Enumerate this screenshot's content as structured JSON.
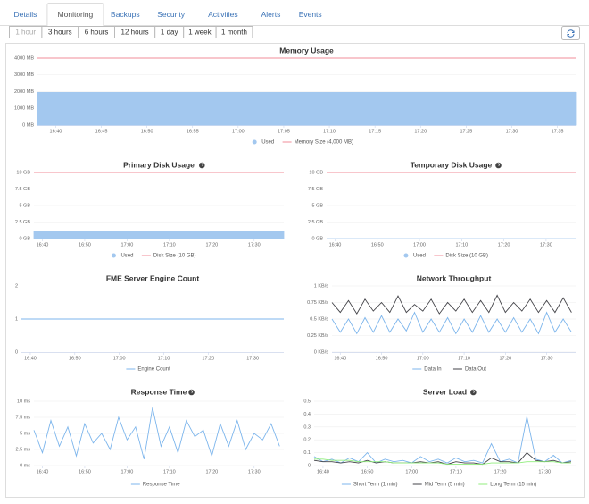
{
  "tabs": [
    "Details",
    "Monitoring",
    "Backups",
    "Security",
    "Activities",
    "Alerts",
    "Events"
  ],
  "active_tab": 1,
  "ranges": [
    "1 hour",
    "3 hours",
    "6 hours",
    "12 hours",
    "1 day",
    "1 week",
    "1 month"
  ],
  "active_range": 0,
  "chart_data": [
    {
      "type": "area",
      "title": "Memory Usage",
      "help": false,
      "grid": true,
      "xlim": [
        998,
        1057
      ],
      "x": [
        998,
        1057
      ],
      "xticks": [
        {
          "value": 1000,
          "label": "16:40"
        },
        {
          "value": 1005,
          "label": "16:45"
        },
        {
          "value": 1010,
          "label": "16:50"
        },
        {
          "value": 1015,
          "label": "16:55"
        },
        {
          "value": 1020,
          "label": "17:00"
        },
        {
          "value": 1025,
          "label": "17:05"
        },
        {
          "value": 1030,
          "label": "17:10"
        },
        {
          "value": 1035,
          "label": "17:15"
        },
        {
          "value": 1040,
          "label": "17:20"
        },
        {
          "value": 1045,
          "label": "17:25"
        },
        {
          "value": 1050,
          "label": "17:30"
        },
        {
          "value": 1055,
          "label": "17:35"
        }
      ],
      "ylim": [
        0,
        4000
      ],
      "yticks": [
        {
          "value": 0,
          "label": "0 MB"
        },
        {
          "value": 1000,
          "label": "1000 MB"
        },
        {
          "value": 2000,
          "label": "2000 MB"
        },
        {
          "value": 3000,
          "label": "3000 MB"
        },
        {
          "value": 4000,
          "label": "4000 MB"
        }
      ],
      "series": [
        {
          "name": "Used",
          "type": "area",
          "color": "#a3c8ef",
          "values": [
            1950,
            1950
          ]
        },
        {
          "name": "Memory Size (4,000 MB)",
          "type": "line",
          "color": "#f08d9a",
          "values": [
            4000,
            4000
          ]
        }
      ]
    },
    {
      "type": "area",
      "title": "Primary Disk Usage",
      "help": true,
      "grid": true,
      "xlim": [
        998,
        1057
      ],
      "x": [
        998,
        1057
      ],
      "xticks": [
        {
          "value": 1000,
          "label": "16:40"
        },
        {
          "value": 1010,
          "label": "16:50"
        },
        {
          "value": 1020,
          "label": "17:00"
        },
        {
          "value": 1030,
          "label": "17:10"
        },
        {
          "value": 1040,
          "label": "17:20"
        },
        {
          "value": 1050,
          "label": "17:30"
        }
      ],
      "ylim": [
        0,
        10
      ],
      "yticks": [
        {
          "value": 0,
          "label": "0 GB"
        },
        {
          "value": 2.5,
          "label": "2.5 GB"
        },
        {
          "value": 5,
          "label": "5 GB"
        },
        {
          "value": 7.5,
          "label": "7.5 GB"
        },
        {
          "value": 10,
          "label": "10 GB"
        }
      ],
      "series": [
        {
          "name": "Used",
          "type": "area",
          "color": "#a3c8ef",
          "values": [
            1.1,
            1.1
          ]
        },
        {
          "name": "Disk Size (10 GB)",
          "type": "line",
          "color": "#f08d9a",
          "values": [
            10,
            10
          ]
        }
      ]
    },
    {
      "type": "area",
      "title": "Temporary Disk Usage",
      "help": true,
      "grid": true,
      "xlim": [
        998,
        1057
      ],
      "x": [
        998,
        1057
      ],
      "xticks": [
        {
          "value": 1000,
          "label": "16:40"
        },
        {
          "value": 1010,
          "label": "16:50"
        },
        {
          "value": 1020,
          "label": "17:00"
        },
        {
          "value": 1030,
          "label": "17:10"
        },
        {
          "value": 1040,
          "label": "17:20"
        },
        {
          "value": 1050,
          "label": "17:30"
        }
      ],
      "ylim": [
        0,
        10
      ],
      "yticks": [
        {
          "value": 0,
          "label": "0 GB"
        },
        {
          "value": 2.5,
          "label": "2.5 GB"
        },
        {
          "value": 5,
          "label": "5 GB"
        },
        {
          "value": 7.5,
          "label": "7.5 GB"
        },
        {
          "value": 10,
          "label": "10 GB"
        }
      ],
      "series": [
        {
          "name": "Used",
          "type": "area",
          "color": "#a3c8ef",
          "values": [
            0,
            0
          ]
        },
        {
          "name": "Disk Size (10 GB)",
          "type": "line",
          "color": "#f08d9a",
          "values": [
            10,
            10
          ]
        }
      ]
    },
    {
      "type": "line",
      "title": "FME Server Engine Count",
      "help": false,
      "grid": false,
      "xlim": [
        998,
        1057
      ],
      "x": [
        998,
        1057
      ],
      "xticks": [
        {
          "value": 1000,
          "label": "16:40"
        },
        {
          "value": 1010,
          "label": "16:50"
        },
        {
          "value": 1020,
          "label": "17:00"
        },
        {
          "value": 1030,
          "label": "17:10"
        },
        {
          "value": 1040,
          "label": "17:20"
        },
        {
          "value": 1050,
          "label": "17:30"
        }
      ],
      "ylim": [
        0,
        2
      ],
      "yticks": [
        0,
        1,
        2
      ],
      "series": [
        {
          "name": "Engine Count",
          "type": "line",
          "color": "#7cb5ec",
          "values": [
            1,
            1
          ]
        }
      ]
    },
    {
      "type": "line",
      "title": "Network Throughput",
      "help": false,
      "grid": true,
      "xlim": [
        998,
        1057
      ],
      "x": [
        998,
        1000,
        1002,
        1004,
        1006,
        1008,
        1010,
        1012,
        1014,
        1016,
        1018,
        1020,
        1022,
        1024,
        1026,
        1028,
        1030,
        1032,
        1034,
        1036,
        1038,
        1040,
        1042,
        1044,
        1046,
        1048,
        1050,
        1052,
        1054,
        1056
      ],
      "xticks": [
        {
          "value": 1000,
          "label": "16:40"
        },
        {
          "value": 1010,
          "label": "16:50"
        },
        {
          "value": 1020,
          "label": "17:00"
        },
        {
          "value": 1030,
          "label": "17:10"
        },
        {
          "value": 1040,
          "label": "17:20"
        },
        {
          "value": 1050,
          "label": "17:30"
        }
      ],
      "ylim": [
        0,
        1
      ],
      "yticks": [
        {
          "value": 0,
          "label": "0 KB/s"
        },
        {
          "value": 0.25,
          "label": "0.25 KB/s"
        },
        {
          "value": 0.5,
          "label": "0.5 KB/s"
        },
        {
          "value": 0.75,
          "label": "0.75 KB/s"
        },
        {
          "value": 1,
          "label": "1 KB/s"
        }
      ],
      "series": [
        {
          "name": "Data In",
          "type": "line",
          "color": "#7cb5ec",
          "values": [
            0.5,
            0.3,
            0.5,
            0.28,
            0.52,
            0.3,
            0.55,
            0.3,
            0.5,
            0.32,
            0.6,
            0.3,
            0.5,
            0.3,
            0.52,
            0.28,
            0.5,
            0.3,
            0.55,
            0.3,
            0.5,
            0.3,
            0.52,
            0.3,
            0.5,
            0.28,
            0.6,
            0.3,
            0.5,
            0.3
          ]
        },
        {
          "name": "Data Out",
          "type": "line",
          "color": "#434348",
          "values": [
            0.75,
            0.6,
            0.78,
            0.58,
            0.8,
            0.62,
            0.75,
            0.6,
            0.85,
            0.6,
            0.72,
            0.62,
            0.8,
            0.58,
            0.75,
            0.62,
            0.8,
            0.6,
            0.78,
            0.6,
            0.86,
            0.6,
            0.75,
            0.62,
            0.8,
            0.6,
            0.78,
            0.6,
            0.82,
            0.6
          ]
        }
      ]
    },
    {
      "type": "line",
      "title": "Response Time",
      "help": true,
      "grid": true,
      "xlim": [
        998,
        1057
      ],
      "x": [
        998,
        1000,
        1002,
        1004,
        1006,
        1008,
        1010,
        1012,
        1014,
        1016,
        1018,
        1020,
        1022,
        1024,
        1026,
        1028,
        1030,
        1032,
        1034,
        1036,
        1038,
        1040,
        1042,
        1044,
        1046,
        1048,
        1050,
        1052,
        1054,
        1056
      ],
      "xticks": [
        {
          "value": 1000,
          "label": "16:40"
        },
        {
          "value": 1010,
          "label": "16:50"
        },
        {
          "value": 1020,
          "label": "17:00"
        },
        {
          "value": 1030,
          "label": "17:10"
        },
        {
          "value": 1040,
          "label": "17:20"
        },
        {
          "value": 1050,
          "label": "17:30"
        }
      ],
      "ylim": [
        0,
        10
      ],
      "yticks": [
        {
          "value": 0,
          "label": "0 ms"
        },
        {
          "value": 2.5,
          "label": "2.5 ms"
        },
        {
          "value": 5,
          "label": "5 ms"
        },
        {
          "value": 7.5,
          "label": "7.5 ms"
        },
        {
          "value": 10,
          "label": "10 ms"
        }
      ],
      "series": [
        {
          "name": "Response Time",
          "type": "line",
          "color": "#7cb5ec",
          "values": [
            5.5,
            2,
            7,
            3,
            6,
            1.5,
            6.5,
            3.5,
            5,
            2.5,
            7.5,
            4,
            6,
            1,
            9,
            3,
            6,
            2,
            7,
            4.5,
            5.5,
            1.5,
            6.5,
            3,
            7,
            2.5,
            5,
            4,
            6.5,
            3
          ]
        }
      ]
    },
    {
      "type": "line",
      "title": "Server Load",
      "help": true,
      "grid": true,
      "xlim": [
        998,
        1057
      ],
      "x": [
        998,
        1000,
        1002,
        1004,
        1006,
        1008,
        1010,
        1012,
        1014,
        1016,
        1018,
        1020,
        1022,
        1024,
        1026,
        1028,
        1030,
        1032,
        1034,
        1036,
        1038,
        1040,
        1042,
        1044,
        1046,
        1048,
        1050,
        1052,
        1054,
        1056
      ],
      "xticks": [
        {
          "value": 1000,
          "label": "16:40"
        },
        {
          "value": 1010,
          "label": "16:50"
        },
        {
          "value": 1020,
          "label": "17:00"
        },
        {
          "value": 1030,
          "label": "17:10"
        },
        {
          "value": 1040,
          "label": "17:20"
        },
        {
          "value": 1050,
          "label": "17:30"
        }
      ],
      "ylim": [
        0,
        0.5
      ],
      "yticks": [
        0,
        0.1,
        0.2,
        0.3,
        0.4,
        0.5
      ],
      "series": [
        {
          "name": "Short Term (1 min)",
          "type": "line",
          "color": "#7cb5ec",
          "values": [
            0.07,
            0.03,
            0.05,
            0.02,
            0.06,
            0.03,
            0.1,
            0.02,
            0.05,
            0.03,
            0.04,
            0.02,
            0.07,
            0.03,
            0.05,
            0.02,
            0.06,
            0.03,
            0.04,
            0.02,
            0.17,
            0.03,
            0.05,
            0.02,
            0.38,
            0.05,
            0.03,
            0.08,
            0.02,
            0.04
          ]
        },
        {
          "name": "Mid Term (5 min)",
          "type": "line",
          "color": "#434348",
          "values": [
            0.04,
            0.03,
            0.03,
            0.02,
            0.03,
            0.02,
            0.04,
            0.02,
            0.03,
            0.02,
            0.02,
            0.02,
            0.03,
            0.02,
            0.03,
            0.01,
            0.03,
            0.02,
            0.02,
            0.01,
            0.06,
            0.03,
            0.03,
            0.02,
            0.1,
            0.04,
            0.03,
            0.04,
            0.02,
            0.03
          ]
        },
        {
          "name": "Long Term (15 min)",
          "type": "line",
          "color": "#90ed7d",
          "values": [
            0.05,
            0.05,
            0.04,
            0.04,
            0.04,
            0.03,
            0.03,
            0.03,
            0.03,
            0.02,
            0.02,
            0.02,
            0.02,
            0.02,
            0.02,
            0.01,
            0.01,
            0.01,
            0.01,
            0.01,
            0.02,
            0.02,
            0.02,
            0.02,
            0.03,
            0.03,
            0.03,
            0.03,
            0.02,
            0.02
          ]
        }
      ]
    }
  ]
}
